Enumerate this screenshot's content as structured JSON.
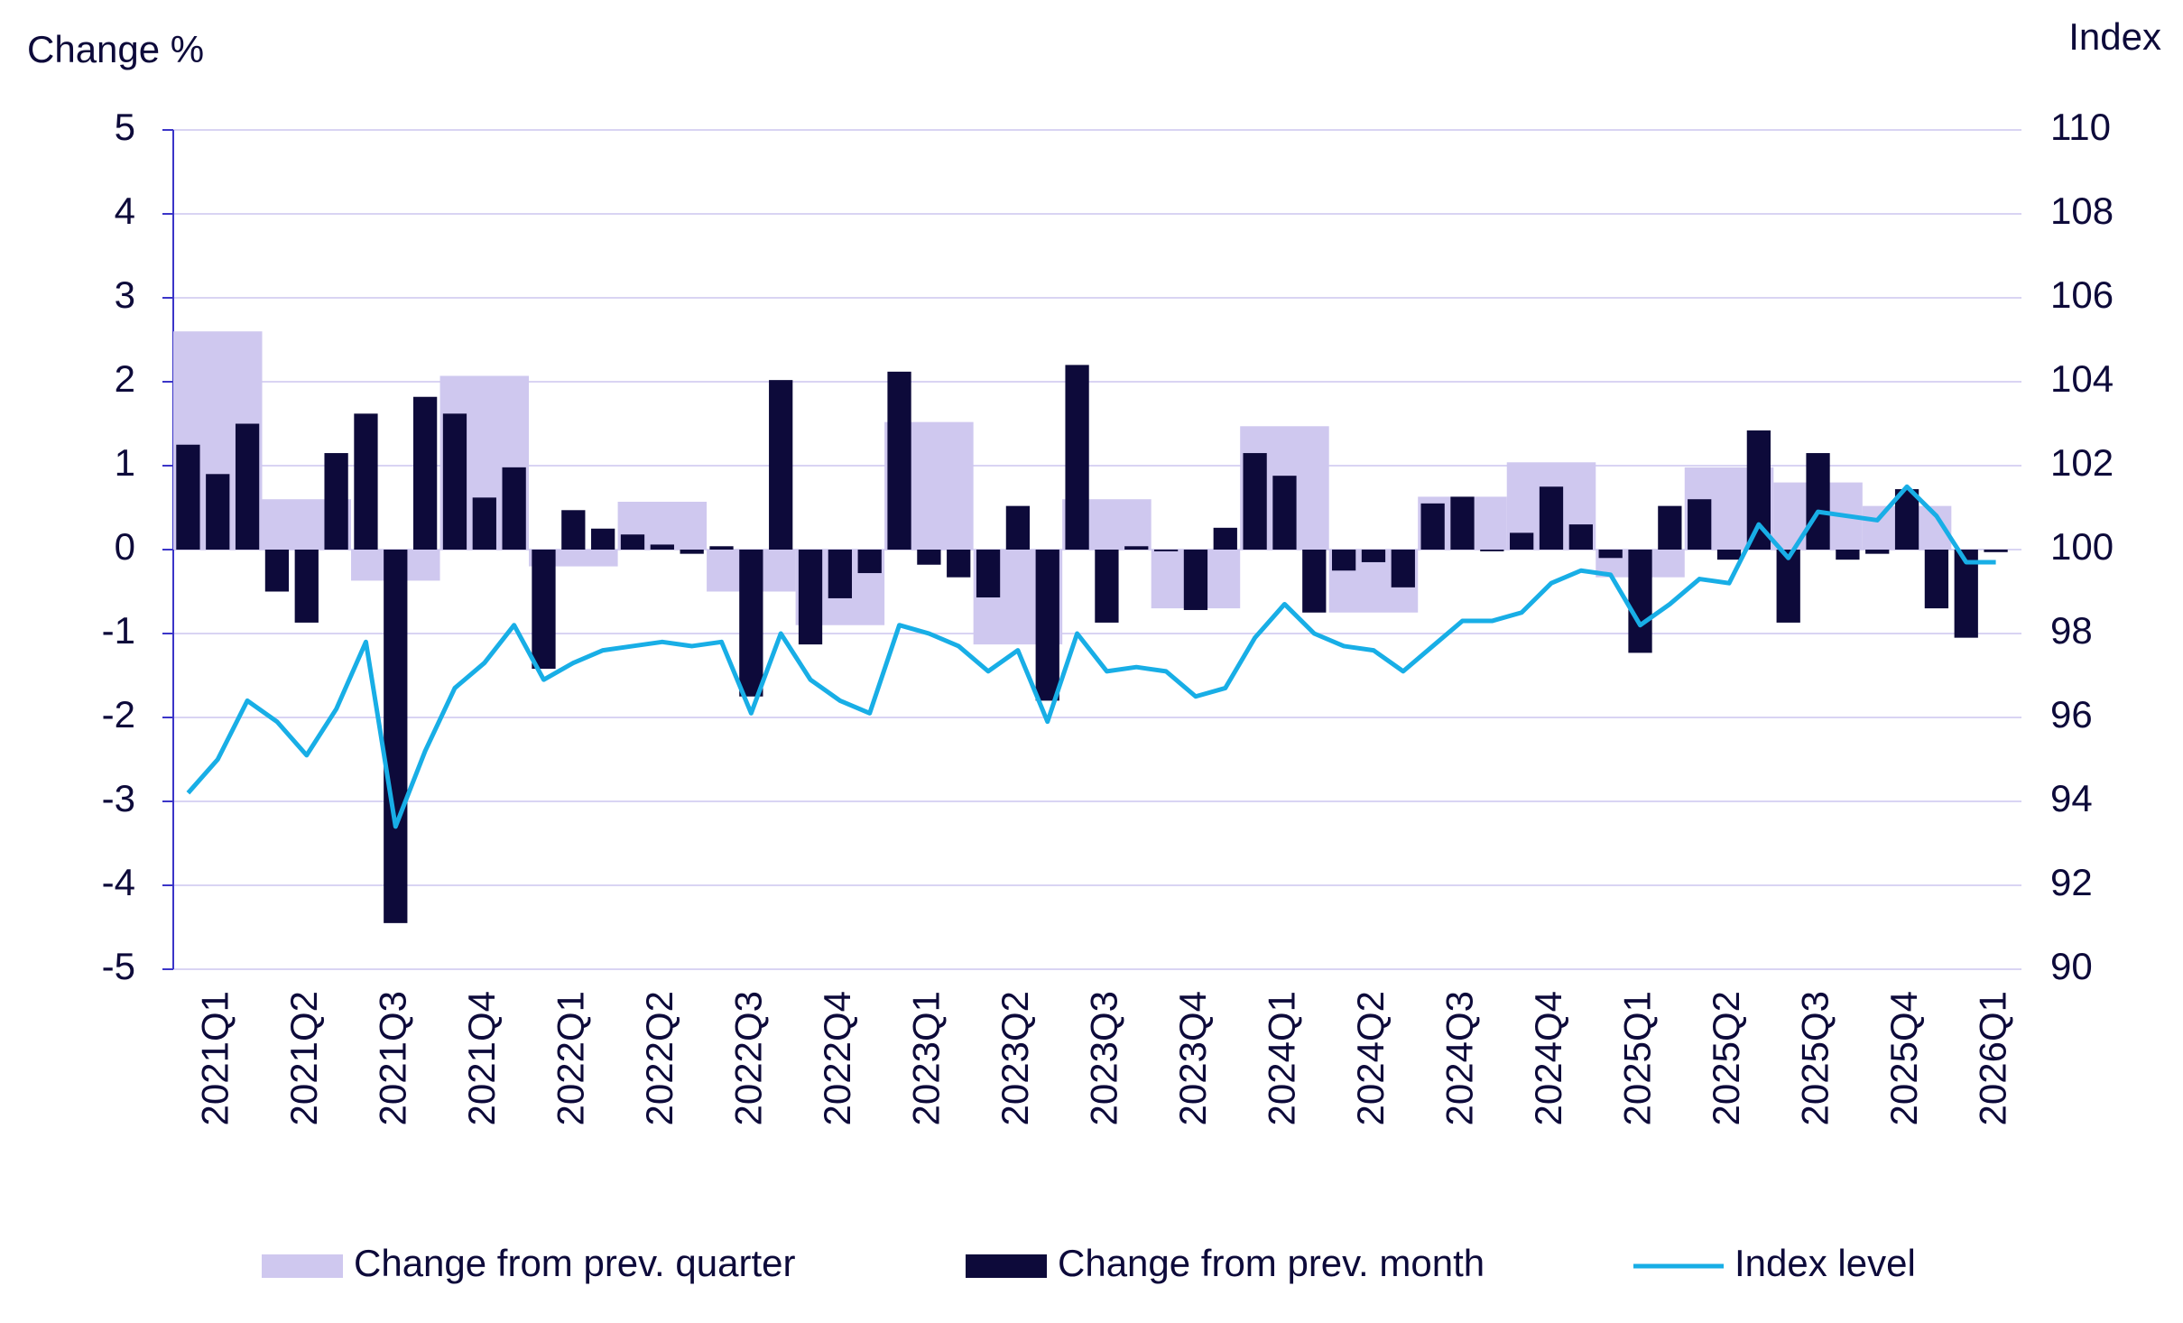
{
  "chart_data": {
    "type": "bar-line",
    "ylabel": "Change %",
    "y2label": "Index",
    "categories": [
      null,
      "2021Q1",
      null,
      null,
      "2021Q2",
      null,
      null,
      "2021Q3",
      null,
      null,
      "2021Q4",
      null,
      null,
      "2022Q1",
      null,
      null,
      "2022Q2",
      null,
      null,
      "2022Q3",
      null,
      null,
      "2022Q4",
      null,
      null,
      "2023Q1",
      null,
      null,
      "2023Q2",
      null,
      null,
      "2023Q3",
      null,
      null,
      "2023Q4",
      null,
      null,
      "2024Q1",
      null,
      null,
      "2024Q2",
      null,
      null,
      "2024Q3",
      null,
      null,
      "2024Q4",
      null,
      null,
      "2025Q1",
      null,
      null,
      "2025Q2",
      null,
      null,
      "2025Q3",
      null,
      null,
      "2025Q4",
      null,
      null,
      "2026Q1"
    ],
    "series": [
      {
        "name": "Change from prev. quarter",
        "kind": "quarter-bar",
        "color": "#cfc8ef",
        "values": [
          null,
          2.6,
          null,
          null,
          0.6,
          null,
          null,
          -0.37,
          null,
          null,
          2.07,
          null,
          null,
          -0.2,
          null,
          null,
          0.57,
          null,
          null,
          -0.5,
          null,
          null,
          -0.9,
          null,
          null,
          1.52,
          null,
          null,
          -1.13,
          null,
          null,
          0.6,
          null,
          null,
          -0.7,
          null,
          null,
          1.47,
          null,
          null,
          -0.75,
          null,
          null,
          0.63,
          null,
          null,
          1.04,
          null,
          null,
          -0.33,
          null,
          null,
          0.98,
          null,
          null,
          0.8,
          null,
          null,
          0.52,
          null,
          null,
          null
        ]
      },
      {
        "name": "Change from prev. month",
        "kind": "bar",
        "color": "#0d0a3a",
        "values": [
          1.25,
          0.9,
          1.5,
          -0.5,
          -0.87,
          1.15,
          1.62,
          -4.45,
          1.82,
          1.62,
          0.62,
          0.98,
          -1.42,
          0.47,
          0.25,
          0.18,
          0.06,
          -0.05,
          0.04,
          -1.75,
          2.02,
          -1.13,
          -0.58,
          -0.28,
          2.12,
          -0.18,
          -0.33,
          -0.57,
          0.52,
          -1.8,
          2.2,
          -0.87,
          0.04,
          -0.02,
          -0.72,
          0.26,
          1.15,
          0.88,
          -0.75,
          -0.25,
          -0.15,
          -0.45,
          0.55,
          0.63,
          -0.02,
          0.2,
          0.75,
          0.3,
          -0.1,
          -1.23,
          0.52,
          0.6,
          -0.12,
          1.42,
          -0.87,
          1.15,
          -0.12,
          -0.05,
          0.72,
          -0.7,
          -1.05,
          -0.03
        ]
      },
      {
        "name": "Index level",
        "kind": "line",
        "axis": "y2",
        "color": "#18aee6",
        "values": [
          94.2,
          95.0,
          96.4,
          95.9,
          95.1,
          96.2,
          97.8,
          93.4,
          95.2,
          96.7,
          97.3,
          98.2,
          96.9,
          97.3,
          97.6,
          97.7,
          97.8,
          97.7,
          97.8,
          96.1,
          98.0,
          96.9,
          96.4,
          96.1,
          98.2,
          98.0,
          97.7,
          97.1,
          97.6,
          95.9,
          98.0,
          97.1,
          97.2,
          97.1,
          96.5,
          96.7,
          97.9,
          98.7,
          98.0,
          97.7,
          97.6,
          97.1,
          97.7,
          98.3,
          98.3,
          98.5,
          99.2,
          99.5,
          99.4,
          98.2,
          98.7,
          99.3,
          99.2,
          100.6,
          99.8,
          100.9,
          100.8,
          100.7,
          101.5,
          100.8,
          99.7,
          99.7
        ]
      }
    ],
    "ylim": [
      -5,
      5
    ],
    "yticks": [
      -5,
      -4,
      -3,
      -2,
      -1,
      0,
      1,
      2,
      3,
      4,
      5
    ],
    "y2lim": [
      90,
      110
    ],
    "y2ticks": [
      90,
      92,
      94,
      96,
      98,
      100,
      102,
      104,
      106,
      108,
      110
    ],
    "grid": true,
    "legend": "bottom"
  }
}
